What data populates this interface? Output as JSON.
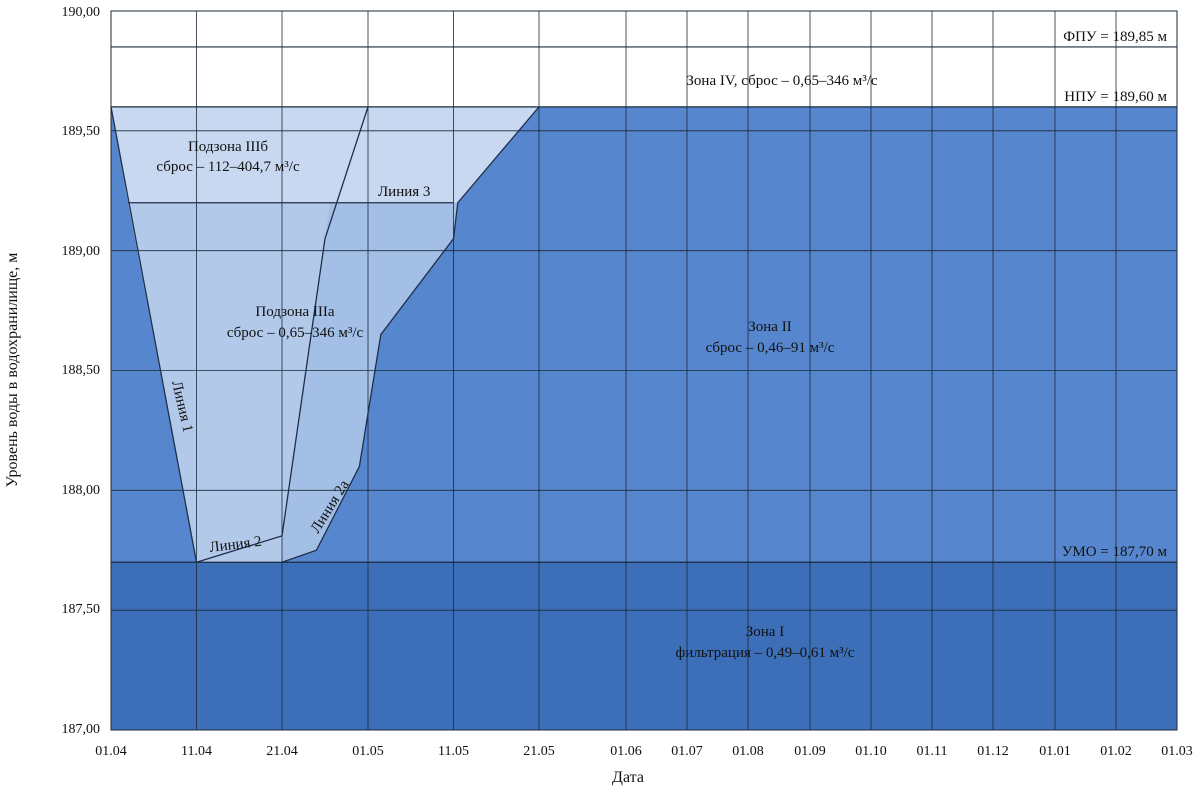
{
  "chart_data": {
    "type": "area",
    "xlabel": "Дата",
    "ylabel": "Уровень воды в водохранилище, м",
    "ylim": [
      187.0,
      190.0
    ],
    "y_ticks": [
      "187,00",
      "187,50",
      "188,00",
      "188,50",
      "189,00",
      "189,50",
      "190,00"
    ],
    "y_tick_values": [
      187.0,
      187.5,
      188.0,
      188.5,
      189.0,
      189.5,
      190.0
    ],
    "x_ticks": [
      "01.04",
      "11.04",
      "21.04",
      "01.05",
      "11.05",
      "21.05",
      "01.06",
      "01.07",
      "01.08",
      "01.09",
      "01.10",
      "01.11",
      "01.12",
      "01.01",
      "01.02",
      "01.03"
    ],
    "x_tick_index": [
      0,
      1,
      2,
      3,
      4,
      5,
      6,
      7,
      8,
      9,
      10,
      11,
      12,
      13,
      14,
      15
    ],
    "grid": true,
    "colors": {
      "zone_1": "#3d6fb8",
      "zone_2": "#5686cd",
      "zone_3a": "#a3bfe6",
      "zone_3b": "#c7d8f0",
      "zone_3a_left": "#7ca3dd",
      "zone_4": "#ffffff",
      "lines": "#1f2f4a"
    },
    "reference_levels": [
      {
        "label": "ФПУ = 189,85 м",
        "value": 189.85
      },
      {
        "label": "НПУ = 189,60 м",
        "value": 189.6
      },
      {
        "label": "УМО = 187,70 м",
        "value": 187.7
      }
    ],
    "lines": [
      {
        "label": "Линия 1",
        "points": [
          [
            0,
            189.6
          ],
          [
            1,
            187.7
          ]
        ]
      },
      {
        "label": "Линия 2",
        "points": [
          [
            1,
            187.7
          ],
          [
            2,
            187.81
          ]
        ]
      },
      {
        "label": "Линия 2а",
        "points": [
          [
            2,
            187.7
          ],
          [
            2.4,
            187.75
          ],
          [
            2.9,
            188.1
          ],
          [
            3.15,
            188.65
          ],
          [
            4,
            189.05
          ],
          [
            4.05,
            189.2
          ],
          [
            5,
            189.6
          ]
        ]
      },
      {
        "label": "Линия 3",
        "points": [
          [
            0.2,
            189.2
          ],
          [
            4,
            189.2
          ]
        ]
      },
      {
        "label": "",
        "points": [
          [
            2,
            187.81
          ],
          [
            2.5,
            189.05
          ],
          [
            3,
            189.6
          ]
        ]
      }
    ],
    "zones": [
      {
        "label": "Зона IV, сброс – 0,65–346 м³/с"
      },
      {
        "label": "Подзона IIIб",
        "sublabel": "сброс – 112–404,7 м³/с"
      },
      {
        "label": "Подзона IIIа",
        "sublabel": "сброс – 0,65–346 м³/с"
      },
      {
        "label": "Зона II",
        "sublabel": "сброс – 0,46–91 м³/с"
      },
      {
        "label": "Зона I",
        "sublabel": "фильтрация – 0,49–0,61 м³/с"
      }
    ]
  }
}
